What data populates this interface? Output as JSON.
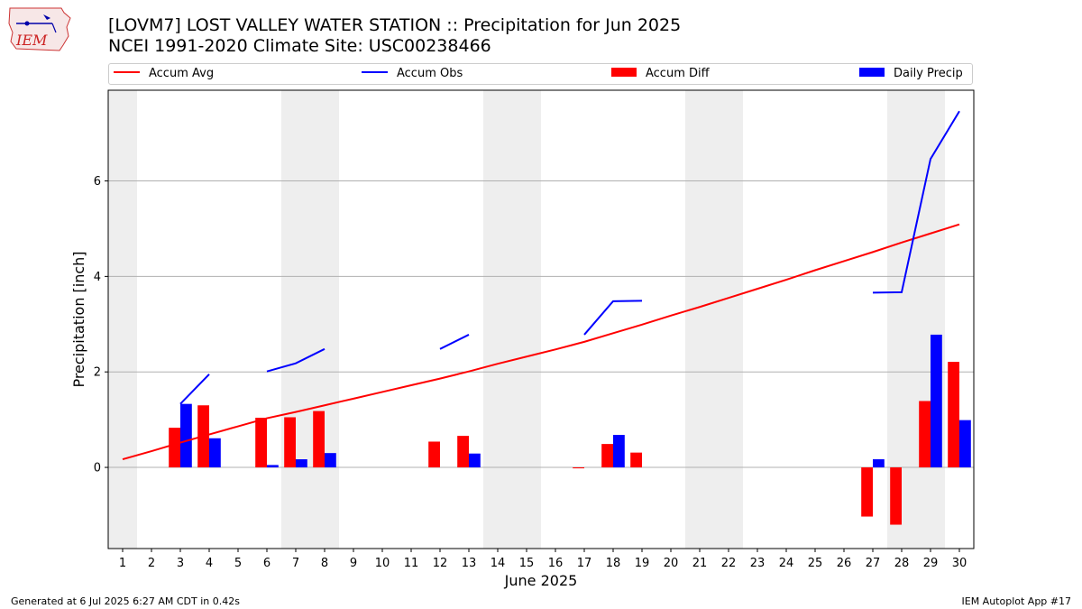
{
  "header": {
    "title_line1": "[LOVM7] LOST VALLEY WATER STATION :: Precipitation for Jun 2025",
    "title_line2": "NCEI 1991-2020 Climate Site: USC00238466"
  },
  "logo": {
    "text": "IEM"
  },
  "footer": {
    "left": "Generated at 6 Jul 2025 6:27 AM CDT in 0.42s",
    "right": "IEM Autoplot App #17"
  },
  "colors": {
    "accum_avg": "#ff0000",
    "accum_obs": "#0000ff",
    "accum_diff": "#ff0000",
    "daily_precip": "#0000ff",
    "weekend_shade": "#eeeeee",
    "grid": "#b0b0b0"
  },
  "chart_data": {
    "type": "bar",
    "xlabel": "June 2025",
    "ylabel": "Precipitation [inch]",
    "xlim": [
      0.5,
      30.5
    ],
    "ylim": [
      -1.7,
      7.9
    ],
    "yticks": [
      0,
      2,
      4,
      6
    ],
    "x": [
      1,
      2,
      3,
      4,
      5,
      6,
      7,
      8,
      9,
      10,
      11,
      12,
      13,
      14,
      15,
      16,
      17,
      18,
      19,
      20,
      21,
      22,
      23,
      24,
      25,
      26,
      27,
      28,
      29,
      30
    ],
    "weekend_spans": [
      [
        0.5,
        1.5
      ],
      [
        6.5,
        8.5
      ],
      [
        13.5,
        15.5
      ],
      [
        20.5,
        22.5
      ],
      [
        27.5,
        29.5
      ]
    ],
    "grid": "y",
    "legend_position": "top",
    "legend": [
      "Accum Avg",
      "Accum Obs",
      "Accum Diff",
      "Daily Precip"
    ],
    "series": [
      {
        "name": "Accum Avg",
        "kind": "line",
        "values": [
          0.17,
          0.34,
          0.52,
          0.69,
          0.86,
          1.03,
          1.16,
          1.3,
          1.44,
          1.58,
          1.72,
          1.86,
          2.01,
          2.17,
          2.32,
          2.47,
          2.63,
          2.81,
          2.99,
          3.18,
          3.36,
          3.55,
          3.74,
          3.93,
          4.13,
          4.32,
          4.51,
          4.71,
          4.9,
          5.09
        ]
      },
      {
        "name": "Accum Obs",
        "kind": "line",
        "values": [
          null,
          null,
          1.33,
          1.95,
          null,
          2.01,
          2.18,
          2.48,
          null,
          null,
          null,
          2.48,
          2.78,
          null,
          null,
          null,
          2.78,
          3.48,
          3.49,
          null,
          null,
          null,
          null,
          null,
          null,
          null,
          3.66,
          3.67,
          6.46,
          7.46
        ]
      },
      {
        "name": "Accum Diff",
        "kind": "bar",
        "values": [
          0,
          0,
          0.83,
          1.3,
          0,
          1.04,
          1.05,
          1.18,
          0,
          0,
          0,
          0.54,
          0.66,
          0,
          0,
          0,
          -0.02,
          0.49,
          0.31,
          0,
          0,
          0,
          0,
          0,
          0,
          0,
          -1.03,
          -1.2,
          1.39,
          2.21
        ]
      },
      {
        "name": "Daily Precip",
        "kind": "bar",
        "values": [
          0,
          0,
          1.33,
          0.61,
          0,
          0.05,
          0.17,
          0.3,
          0,
          0,
          0,
          0,
          0.29,
          0,
          0,
          0,
          0,
          0.68,
          0,
          0,
          0,
          0,
          0,
          0,
          0,
          0,
          0.17,
          0,
          2.78,
          0.99
        ]
      }
    ]
  }
}
